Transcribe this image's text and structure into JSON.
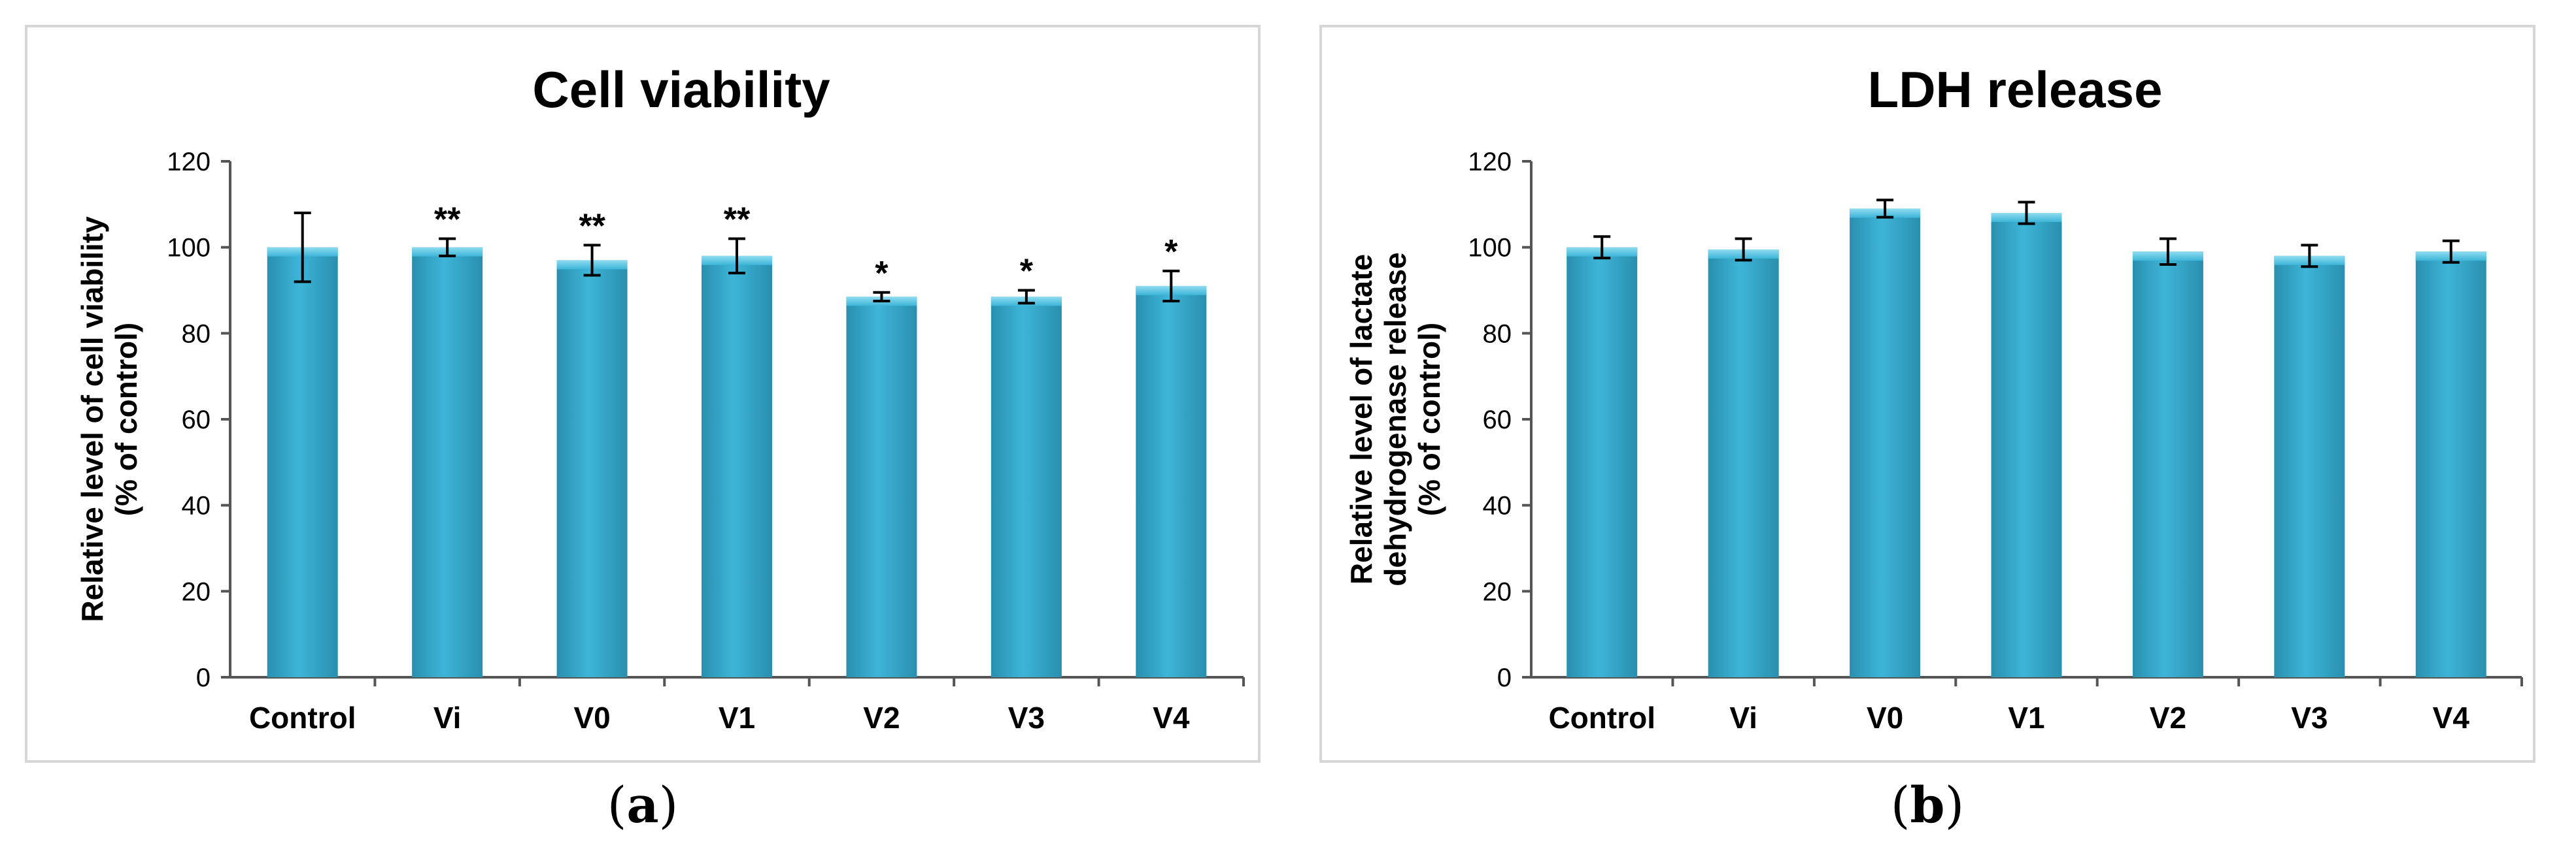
{
  "colors": {
    "bar": "#3db5d8",
    "bar_dark": "#2a8fae",
    "bar_light": "#8fdcf0",
    "axis": "#555555",
    "frame": "#d6d6d6"
  },
  "figure": {
    "caption_a": "a",
    "caption_b": "b"
  },
  "chart_data": [
    {
      "type": "bar",
      "title": "Cell viability",
      "ylabel_lines": [
        "Relative level of cell viability",
        "(% of control)"
      ],
      "xlabel": "",
      "categories": [
        "Control",
        "Vi",
        "V0",
        "V1",
        "V2",
        "V3",
        "V4"
      ],
      "values": [
        100,
        100,
        97,
        98,
        88.5,
        88.5,
        91
      ],
      "errors": [
        8,
        2,
        3.5,
        4,
        1,
        1.5,
        3.5
      ],
      "significance": [
        "",
        "**",
        "**",
        "**",
        "*",
        "*",
        "*"
      ],
      "ylim": [
        0,
        120
      ],
      "yticks": [
        0,
        20,
        40,
        60,
        80,
        100,
        120
      ],
      "grid": false
    },
    {
      "type": "bar",
      "title": "LDH release",
      "ylabel_lines": [
        "Relative level of lactate",
        "dehydrogenase release",
        "(% of control)"
      ],
      "xlabel": "",
      "categories": [
        "Control",
        "Vi",
        "V0",
        "V1",
        "V2",
        "V3",
        "V4"
      ],
      "values": [
        100,
        99.5,
        109,
        108,
        99,
        98,
        99
      ],
      "errors": [
        2.5,
        2.5,
        2,
        2.5,
        3,
        2.5,
        2.5
      ],
      "significance": [
        "",
        "",
        "",
        "",
        "",
        "",
        ""
      ],
      "ylim": [
        0,
        120
      ],
      "yticks": [
        0,
        20,
        40,
        60,
        80,
        100,
        120
      ],
      "grid": false
    }
  ]
}
